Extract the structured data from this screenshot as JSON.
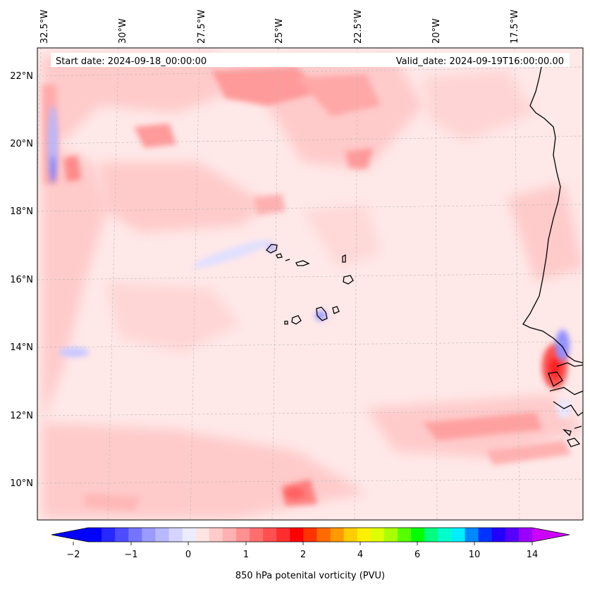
{
  "map": {
    "start_date": "Start date: 2024-09-18_00:00:00",
    "valid_date": "Valid_date: 2024-09-19T16:00:00.00",
    "lon_labels": [
      "32.5°W",
      "30°W",
      "27.5°W",
      "25°W",
      "22.5°W",
      "20°W",
      "17.5°W"
    ],
    "lat_labels": [
      "22°N",
      "20°N",
      "18°N",
      "16°N",
      "14°N",
      "12°N",
      "10°N"
    ]
  },
  "colorbar": {
    "label": "850 hPa potenital vorticity (PVU)",
    "tick_labels": [
      "−2",
      "−1",
      "0",
      "1",
      "2",
      "4",
      "6",
      "10",
      "14"
    ],
    "colors": [
      "#0000ff",
      "#2727ff",
      "#4d4dff",
      "#7474ff",
      "#9b9bff",
      "#b8b8ff",
      "#d4d4ff",
      "#ececff",
      "#ffe4e4",
      "#ffcaca",
      "#ffb0b0",
      "#ff9090",
      "#ff6e6e",
      "#ff5050",
      "#ff2e2e",
      "#ff0000",
      "#ff3300",
      "#ff6a00",
      "#ff9900",
      "#ffcc00",
      "#fff000",
      "#ddff00",
      "#aaff00",
      "#55ff00",
      "#00ff00",
      "#00ff80",
      "#00ffcc",
      "#00eeff",
      "#0088ff",
      "#0033ff",
      "#2200ff",
      "#5500ff",
      "#9900ff"
    ],
    "under_color": "#0000ff",
    "over_color": "#cc00ff"
  }
}
